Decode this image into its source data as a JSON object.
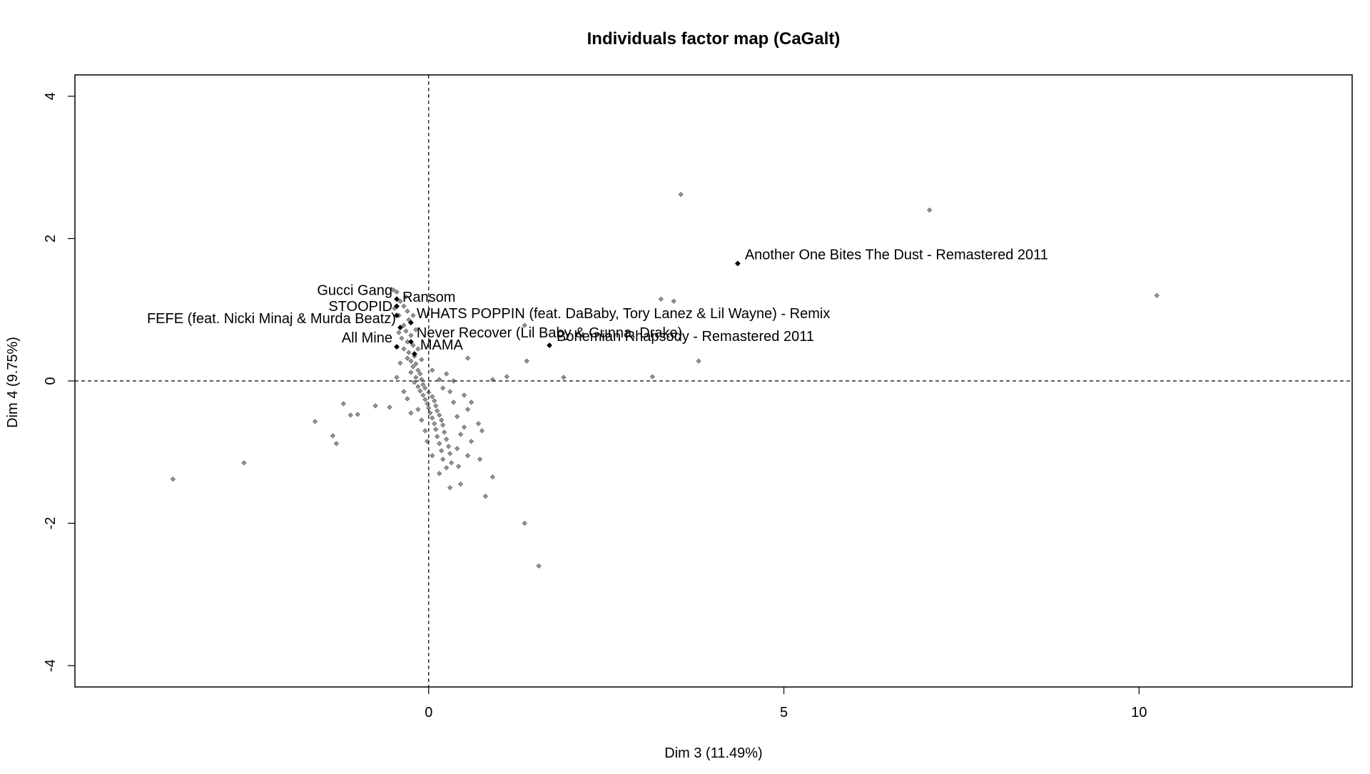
{
  "chart_data": {
    "type": "scatter",
    "title": "Individuals factor map (CaGalt)",
    "xlabel": "Dim 3 (11.49%)",
    "ylabel": "Dim 4 (9.75%)",
    "xlim": [
      -4.98,
      13.0
    ],
    "ylim": [
      -4.3,
      4.3
    ],
    "xticks": [
      0,
      5,
      10
    ],
    "yticks": [
      -4,
      -2,
      0,
      2,
      4
    ],
    "grid": false,
    "reference_lines": {
      "x": 0,
      "y": 0,
      "style": "dashed"
    },
    "labeled_points": [
      {
        "label": "Another One Bites The Dust - Remastered 2011",
        "x": 4.35,
        "y": 1.65
      },
      {
        "label": "Gucci Gang",
        "x": -0.45,
        "y": 1.15
      },
      {
        "label": "Ransom",
        "x": -0.45,
        "y": 1.05
      },
      {
        "label": "STOOPID",
        "x": -0.45,
        "y": 0.92
      },
      {
        "label": "WHATS POPPIN (feat. DaBaby, Tory Lanez & Lil Wayne) - Remix",
        "x": -0.25,
        "y": 0.82
      },
      {
        "label": "FEFE (feat. Nicki Minaj & Murda Beatz)",
        "x": -0.4,
        "y": 0.75
      },
      {
        "label": "Never Recover (Lil Baby & Gunna, Drake)",
        "x": -0.25,
        "y": 0.55
      },
      {
        "label": "All Mine",
        "x": -0.45,
        "y": 0.48
      },
      {
        "label": "MAMA",
        "x": -0.2,
        "y": 0.38
      },
      {
        "label": "Bohemian Rhapsody - Remastered 2011",
        "x": 1.7,
        "y": 0.5
      }
    ],
    "points": [
      {
        "x": 3.55,
        "y": 2.62
      },
      {
        "x": 7.05,
        "y": 2.4
      },
      {
        "x": 10.25,
        "y": 1.2
      },
      {
        "x": 3.27,
        "y": 1.15
      },
      {
        "x": 3.45,
        "y": 1.12
      },
      {
        "x": 1.35,
        "y": 0.78
      },
      {
        "x": 1.9,
        "y": 0.05
      },
      {
        "x": 3.15,
        "y": 0.06
      },
      {
        "x": 3.8,
        "y": 0.28
      },
      {
        "x": 1.38,
        "y": 0.28
      },
      {
        "x": 1.1,
        "y": 0.06
      },
      {
        "x": 0.9,
        "y": 0.02
      },
      {
        "x": 0.55,
        "y": 0.32
      },
      {
        "x": 0.6,
        "y": -0.3
      },
      {
        "x": 0.7,
        "y": -0.6
      },
      {
        "x": 0.75,
        "y": -0.7
      },
      {
        "x": 0.72,
        "y": -1.1
      },
      {
        "x": 0.9,
        "y": -1.35
      },
      {
        "x": 0.8,
        "y": -1.62
      },
      {
        "x": 0.45,
        "y": -1.45
      },
      {
        "x": 0.3,
        "y": -1.5
      },
      {
        "x": 1.35,
        "y": -2.0
      },
      {
        "x": 1.55,
        "y": -2.6
      },
      {
        "x": -1.6,
        "y": -0.57
      },
      {
        "x": -1.2,
        "y": -0.32
      },
      {
        "x": -1.1,
        "y": -0.48
      },
      {
        "x": -1.0,
        "y": -0.47
      },
      {
        "x": -0.75,
        "y": -0.35
      },
      {
        "x": -1.35,
        "y": -0.77
      },
      {
        "x": -1.3,
        "y": -0.88
      },
      {
        "x": -0.55,
        "y": -0.37
      },
      {
        "x": -2.6,
        "y": -1.15
      },
      {
        "x": -3.6,
        "y": -1.38
      },
      {
        "x": -0.5,
        "y": 1.28
      },
      {
        "x": -0.45,
        "y": 1.25
      },
      {
        "x": -0.4,
        "y": 1.12
      },
      {
        "x": -0.35,
        "y": 1.05
      },
      {
        "x": -0.3,
        "y": 0.98
      },
      {
        "x": -0.42,
        "y": 0.92
      },
      {
        "x": -0.28,
        "y": 0.86
      },
      {
        "x": -0.35,
        "y": 0.78
      },
      {
        "x": -0.32,
        "y": 0.7
      },
      {
        "x": -0.25,
        "y": 0.64
      },
      {
        "x": -0.38,
        "y": 0.6
      },
      {
        "x": -0.3,
        "y": 0.55
      },
      {
        "x": -0.22,
        "y": 0.5
      },
      {
        "x": -0.35,
        "y": 0.45
      },
      {
        "x": -0.28,
        "y": 0.4
      },
      {
        "x": -0.2,
        "y": 0.35
      },
      {
        "x": -0.3,
        "y": 0.32
      },
      {
        "x": -0.25,
        "y": 0.28
      },
      {
        "x": -0.18,
        "y": 0.24
      },
      {
        "x": -0.22,
        "y": 0.2
      },
      {
        "x": -0.15,
        "y": 0.15
      },
      {
        "x": -0.25,
        "y": 0.12
      },
      {
        "x": -0.12,
        "y": 0.1
      },
      {
        "x": -0.18,
        "y": 0.05
      },
      {
        "x": -0.1,
        "y": 0.02
      },
      {
        "x": -0.2,
        "y": -0.02
      },
      {
        "x": -0.08,
        "y": -0.05
      },
      {
        "x": -0.15,
        "y": -0.08
      },
      {
        "x": -0.05,
        "y": -0.1
      },
      {
        "x": -0.12,
        "y": -0.14
      },
      {
        "x": 0.0,
        "y": -0.16
      },
      {
        "x": -0.08,
        "y": -0.2
      },
      {
        "x": 0.05,
        "y": -0.22
      },
      {
        "x": -0.05,
        "y": -0.26
      },
      {
        "x": 0.08,
        "y": -0.28
      },
      {
        "x": -0.02,
        "y": -0.32
      },
      {
        "x": 0.1,
        "y": -0.35
      },
      {
        "x": 0.0,
        "y": -0.38
      },
      {
        "x": 0.12,
        "y": -0.42
      },
      {
        "x": 0.02,
        "y": -0.45
      },
      {
        "x": 0.15,
        "y": -0.48
      },
      {
        "x": 0.05,
        "y": -0.52
      },
      {
        "x": 0.18,
        "y": -0.55
      },
      {
        "x": 0.08,
        "y": -0.6
      },
      {
        "x": 0.2,
        "y": -0.62
      },
      {
        "x": 0.1,
        "y": -0.68
      },
      {
        "x": 0.22,
        "y": -0.72
      },
      {
        "x": 0.12,
        "y": -0.78
      },
      {
        "x": 0.25,
        "y": -0.82
      },
      {
        "x": 0.15,
        "y": -0.88
      },
      {
        "x": 0.28,
        "y": -0.92
      },
      {
        "x": 0.18,
        "y": -0.98
      },
      {
        "x": 0.3,
        "y": -1.02
      },
      {
        "x": 0.2,
        "y": -1.1
      },
      {
        "x": 0.32,
        "y": -1.15
      },
      {
        "x": 0.25,
        "y": -1.22
      },
      {
        "x": -0.05,
        "y": -0.7
      },
      {
        "x": -0.1,
        "y": -0.55
      },
      {
        "x": -0.15,
        "y": -0.4
      },
      {
        "x": 0.35,
        "y": -0.3
      },
      {
        "x": 0.4,
        "y": -0.5
      },
      {
        "x": 0.45,
        "y": -0.75
      },
      {
        "x": 0.4,
        "y": -0.95
      },
      {
        "x": 0.35,
        "y": 0.0
      },
      {
        "x": 0.25,
        "y": 0.1
      },
      {
        "x": 0.3,
        "y": -0.15
      },
      {
        "x": -0.4,
        "y": 0.25
      },
      {
        "x": -0.45,
        "y": 0.05
      },
      {
        "x": -0.35,
        "y": -0.15
      },
      {
        "x": -0.25,
        "y": -0.45
      },
      {
        "x": -0.3,
        "y": -0.25
      },
      {
        "x": 0.5,
        "y": -0.2
      },
      {
        "x": 0.55,
        "y": -0.4
      },
      {
        "x": 0.5,
        "y": -0.65
      },
      {
        "x": 0.6,
        "y": -0.85
      },
      {
        "x": 0.15,
        "y": -1.3
      },
      {
        "x": 0.05,
        "y": -1.05
      },
      {
        "x": -0.02,
        "y": -0.85
      },
      {
        "x": 0.42,
        "y": -1.2
      },
      {
        "x": 0.55,
        "y": -1.05
      },
      {
        "x": -0.32,
        "y": 1.18
      },
      {
        "x": -0.48,
        "y": 1.02
      },
      {
        "x": -0.22,
        "y": 0.92
      },
      {
        "x": -0.18,
        "y": 0.72
      },
      {
        "x": -0.42,
        "y": 0.68
      },
      {
        "x": -0.15,
        "y": 0.45
      },
      {
        "x": -0.1,
        "y": 0.3
      },
      {
        "x": 0.05,
        "y": 0.15
      },
      {
        "x": 0.15,
        "y": 0.02
      },
      {
        "x": 0.2,
        "y": -0.1
      }
    ]
  }
}
